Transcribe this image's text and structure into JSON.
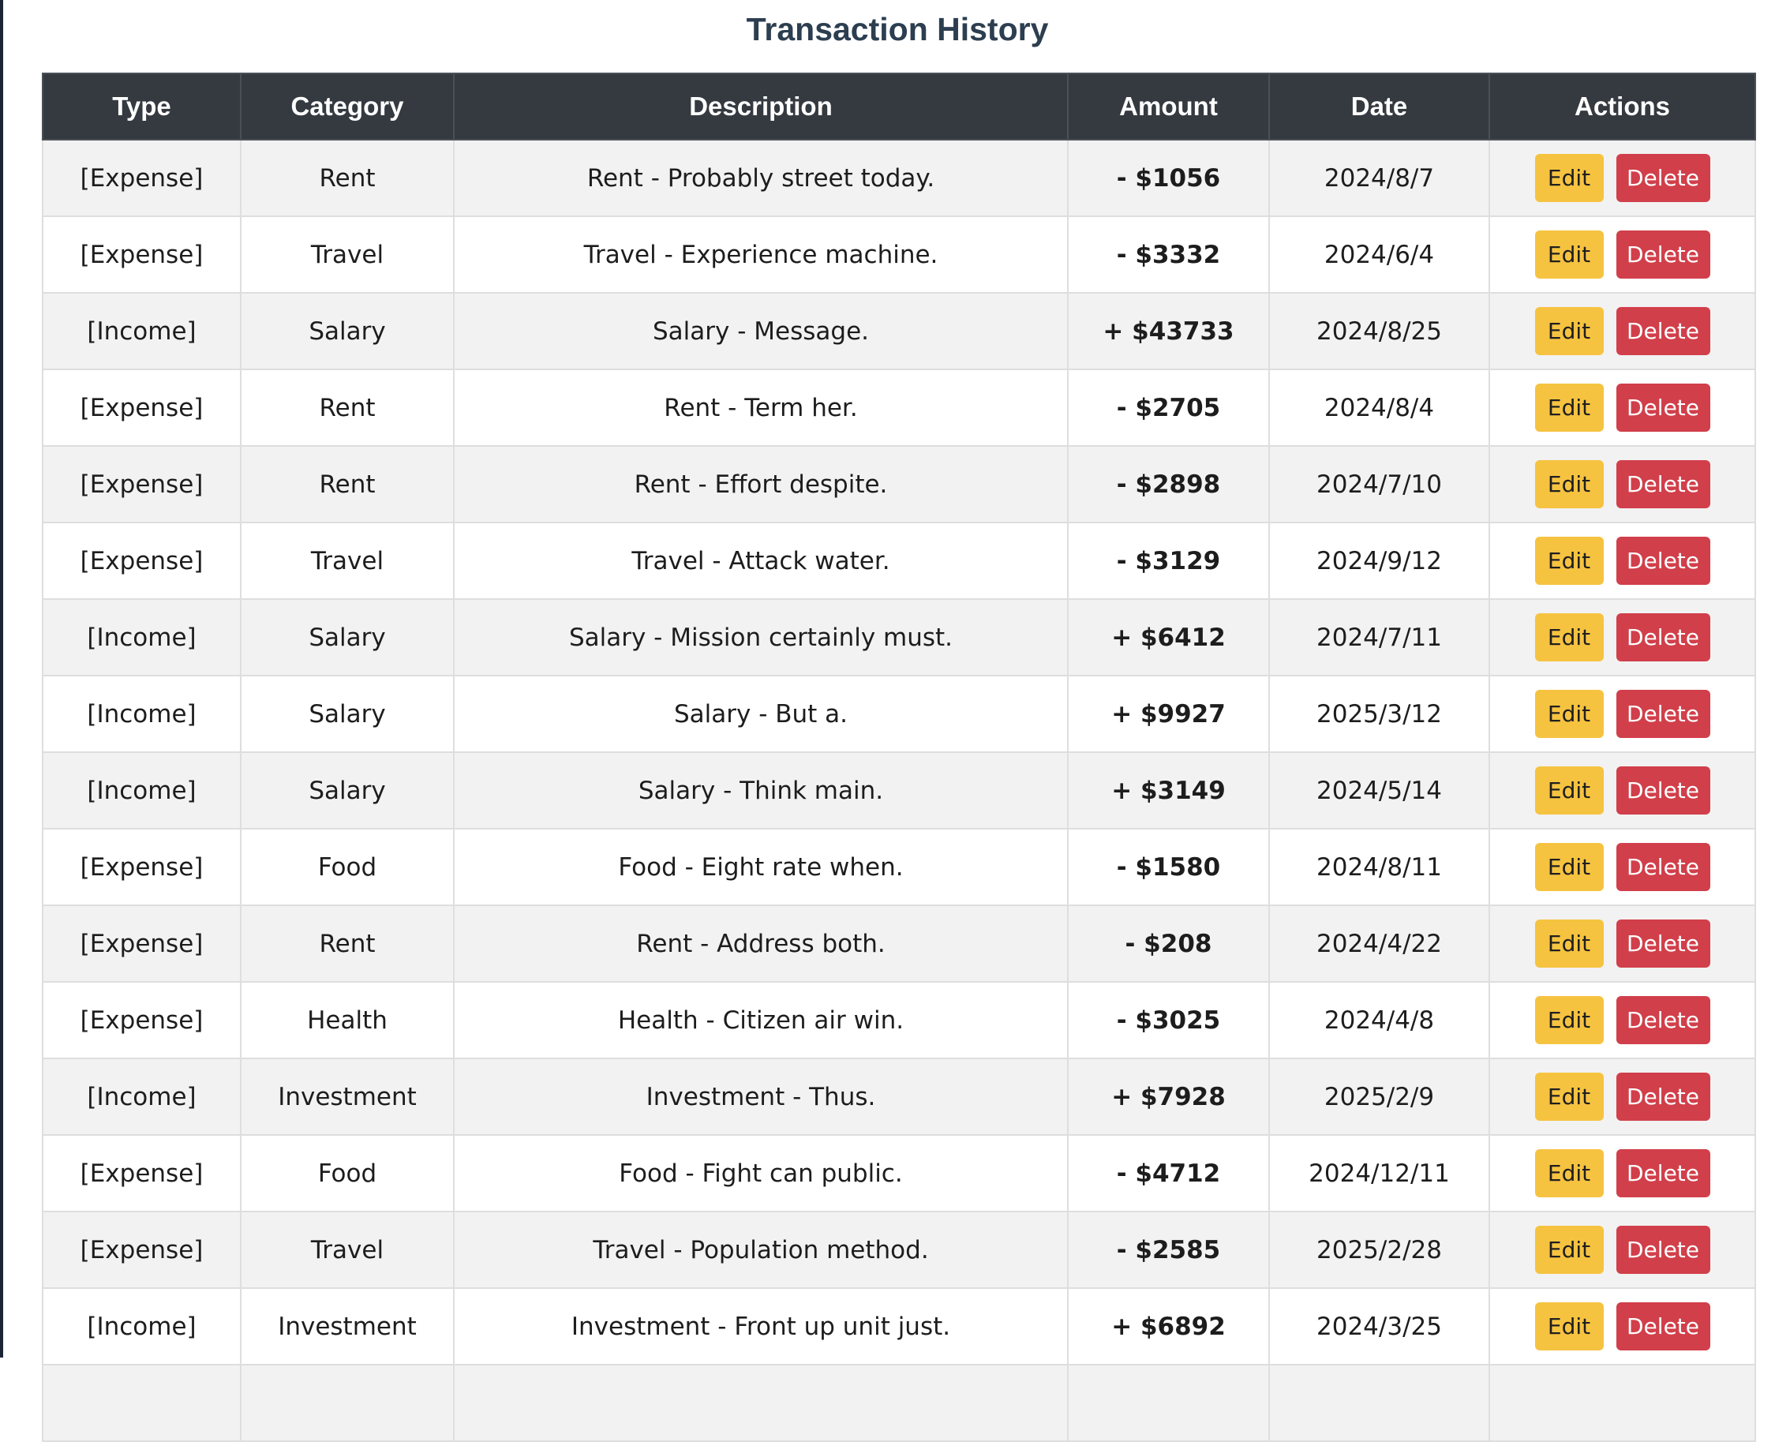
{
  "page": {
    "title": "Transaction History"
  },
  "colors": {
    "header_bg": "#343a40",
    "expense": "#d0464f",
    "income": "#3a8452",
    "edit_button": "#f6c341",
    "delete_button": "#d13f4a",
    "title": "#2c3e50"
  },
  "table": {
    "headers": [
      "Type",
      "Category",
      "Description",
      "Amount",
      "Date",
      "Actions"
    ],
    "edit_label": "Edit",
    "delete_label": "Delete",
    "rows": [
      {
        "type": "[Expense]",
        "kind": "expense",
        "category": "Rent",
        "description": "Rent - Probably street today.",
        "amount": "- $1056",
        "date": "2024/8/7"
      },
      {
        "type": "[Expense]",
        "kind": "expense",
        "category": "Travel",
        "description": "Travel - Experience machine.",
        "amount": "- $3332",
        "date": "2024/6/4"
      },
      {
        "type": "[Income]",
        "kind": "income",
        "category": "Salary",
        "description": "Salary - Message.",
        "amount": "+ $43733",
        "date": "2024/8/25"
      },
      {
        "type": "[Expense]",
        "kind": "expense",
        "category": "Rent",
        "description": "Rent - Term her.",
        "amount": "- $2705",
        "date": "2024/8/4"
      },
      {
        "type": "[Expense]",
        "kind": "expense",
        "category": "Rent",
        "description": "Rent - Effort despite.",
        "amount": "- $2898",
        "date": "2024/7/10"
      },
      {
        "type": "[Expense]",
        "kind": "expense",
        "category": "Travel",
        "description": "Travel - Attack water.",
        "amount": "- $3129",
        "date": "2024/9/12"
      },
      {
        "type": "[Income]",
        "kind": "income",
        "category": "Salary",
        "description": "Salary - Mission certainly must.",
        "amount": "+ $6412",
        "date": "2024/7/11"
      },
      {
        "type": "[Income]",
        "kind": "income",
        "category": "Salary",
        "description": "Salary - But a.",
        "amount": "+ $9927",
        "date": "2025/3/12"
      },
      {
        "type": "[Income]",
        "kind": "income",
        "category": "Salary",
        "description": "Salary - Think main.",
        "amount": "+ $3149",
        "date": "2024/5/14"
      },
      {
        "type": "[Expense]",
        "kind": "expense",
        "category": "Food",
        "description": "Food - Eight rate when.",
        "amount": "- $1580",
        "date": "2024/8/11"
      },
      {
        "type": "[Expense]",
        "kind": "expense",
        "category": "Rent",
        "description": "Rent - Address both.",
        "amount": "- $208",
        "date": "2024/4/22"
      },
      {
        "type": "[Expense]",
        "kind": "expense",
        "category": "Health",
        "description": "Health - Citizen air win.",
        "amount": "- $3025",
        "date": "2024/4/8"
      },
      {
        "type": "[Income]",
        "kind": "income",
        "category": "Investment",
        "description": "Investment - Thus.",
        "amount": "+ $7928",
        "date": "2025/2/9"
      },
      {
        "type": "[Expense]",
        "kind": "expense",
        "category": "Food",
        "description": "Food - Fight can public.",
        "amount": "- $4712",
        "date": "2024/12/11"
      },
      {
        "type": "[Expense]",
        "kind": "expense",
        "category": "Travel",
        "description": "Travel - Population method.",
        "amount": "- $2585",
        "date": "2025/2/28"
      },
      {
        "type": "[Income]",
        "kind": "income",
        "category": "Investment",
        "description": "Investment - Front up unit just.",
        "amount": "+ $6892",
        "date": "2024/3/25"
      },
      {
        "type": "",
        "kind": "expense",
        "category": "",
        "description": "",
        "amount": "",
        "date": ""
      }
    ]
  }
}
